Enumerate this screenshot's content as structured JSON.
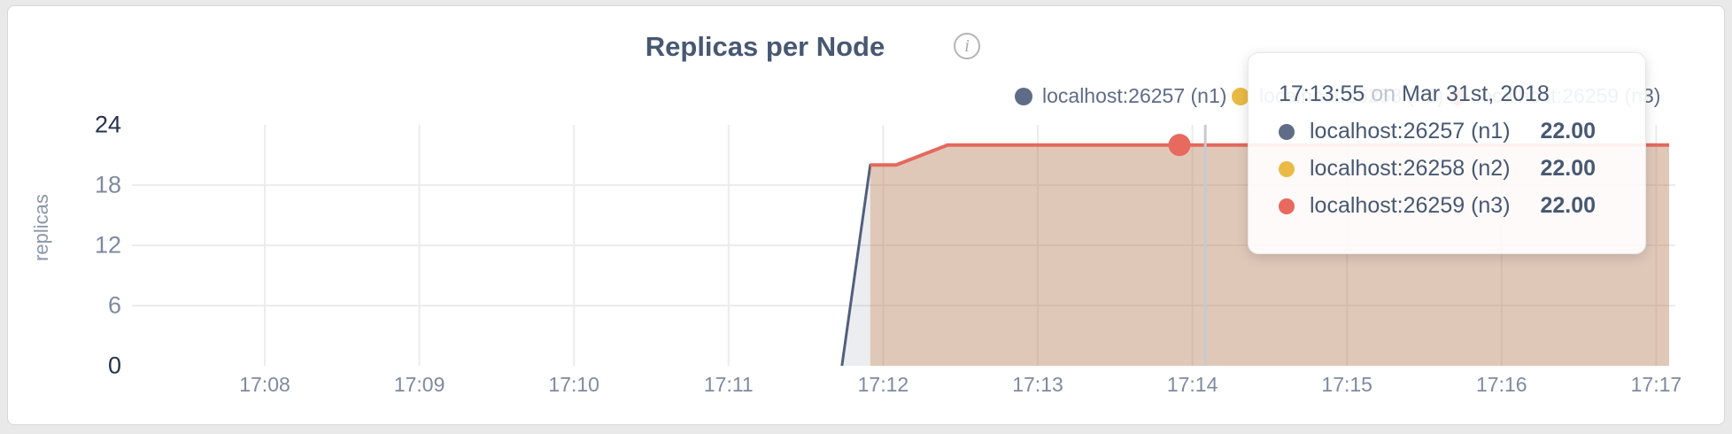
{
  "header": {
    "title": "Replicas per Node",
    "info_glyph": "i"
  },
  "axes": {
    "y_label": "replicas",
    "y_ticks": [
      0,
      6,
      12,
      18,
      24
    ],
    "x_ticks": [
      "17:08",
      "17:09",
      "17:10",
      "17:11",
      "17:12",
      "17:13",
      "17:14",
      "17:15",
      "17:16",
      "17:17"
    ]
  },
  "colors": {
    "n1": "#5F6C87",
    "n1_line": "#515F7D",
    "n1_fill": "rgba(95,108,135,0.12)",
    "n2": "#E9BA45",
    "n2_line": "#E0A83B",
    "n2_fill": "rgba(230,184,64,0.14)",
    "n3": "#E8695D",
    "n3_line": "#E36A5D",
    "n3_fill": "rgba(192,100,80,0.22)",
    "grid": "#ececec",
    "hover_line": "#c7cace",
    "title_text": "#475872",
    "tick_dark": "#26334d",
    "tick_gray": "#7e8a9f"
  },
  "legend": {
    "items": [
      {
        "label": "localhost:26257 (n1)",
        "color": "#5F6C87"
      },
      {
        "label": "localhost:26258 (n2)",
        "color": "#E9BA45"
      },
      {
        "label": "localhost:26259 (n3)",
        "color": "#E8695D"
      }
    ]
  },
  "tooltip": {
    "time": "17:13:55",
    "connector": "on",
    "date": "Mar 31st, 2018",
    "rows": [
      {
        "name": "localhost:26257 (n1)",
        "value": "22.00",
        "color": "#5F6C87"
      },
      {
        "name": "localhost:26258 (n2)",
        "value": "22.00",
        "color": "#E9BA45"
      },
      {
        "name": "localhost:26259 (n3)",
        "value": "22.00",
        "color": "#E8695D"
      }
    ]
  },
  "chart_data": {
    "type": "area",
    "title": "Replicas per Node",
    "ylabel": "replicas",
    "ylim": [
      0,
      24
    ],
    "grid": true,
    "legend_position": "top-right",
    "x_tick_times": [
      "17:08",
      "17:09",
      "17:10",
      "17:11",
      "17:12",
      "17:13",
      "17:14",
      "17:15",
      "17:16",
      "17:17"
    ],
    "y_tick_values": [
      0,
      6,
      12,
      18,
      24
    ],
    "series": [
      {
        "name": "localhost:26257 (n1)",
        "points": [
          [
            "17:11:44",
            0
          ],
          [
            "17:11:55",
            20
          ],
          [
            "17:12:05",
            20
          ],
          [
            "17:12:25",
            22
          ],
          [
            "17:17:05",
            22
          ]
        ]
      },
      {
        "name": "localhost:26258 (n2)",
        "points": [
          [
            "17:11:55",
            20
          ],
          [
            "17:12:05",
            20
          ],
          [
            "17:12:25",
            22
          ],
          [
            "17:17:05",
            22
          ]
        ]
      },
      {
        "name": "localhost:26259 (n3)",
        "points": [
          [
            "17:11:55",
            20
          ],
          [
            "17:12:05",
            20
          ],
          [
            "17:12:25",
            22
          ],
          [
            "17:17:05",
            22
          ]
        ]
      }
    ],
    "hover": {
      "time": "17:13:55",
      "cursor_time": "17:14:05",
      "highlighted_series": "localhost:26259 (n3)",
      "highlighted_value": 22
    }
  }
}
